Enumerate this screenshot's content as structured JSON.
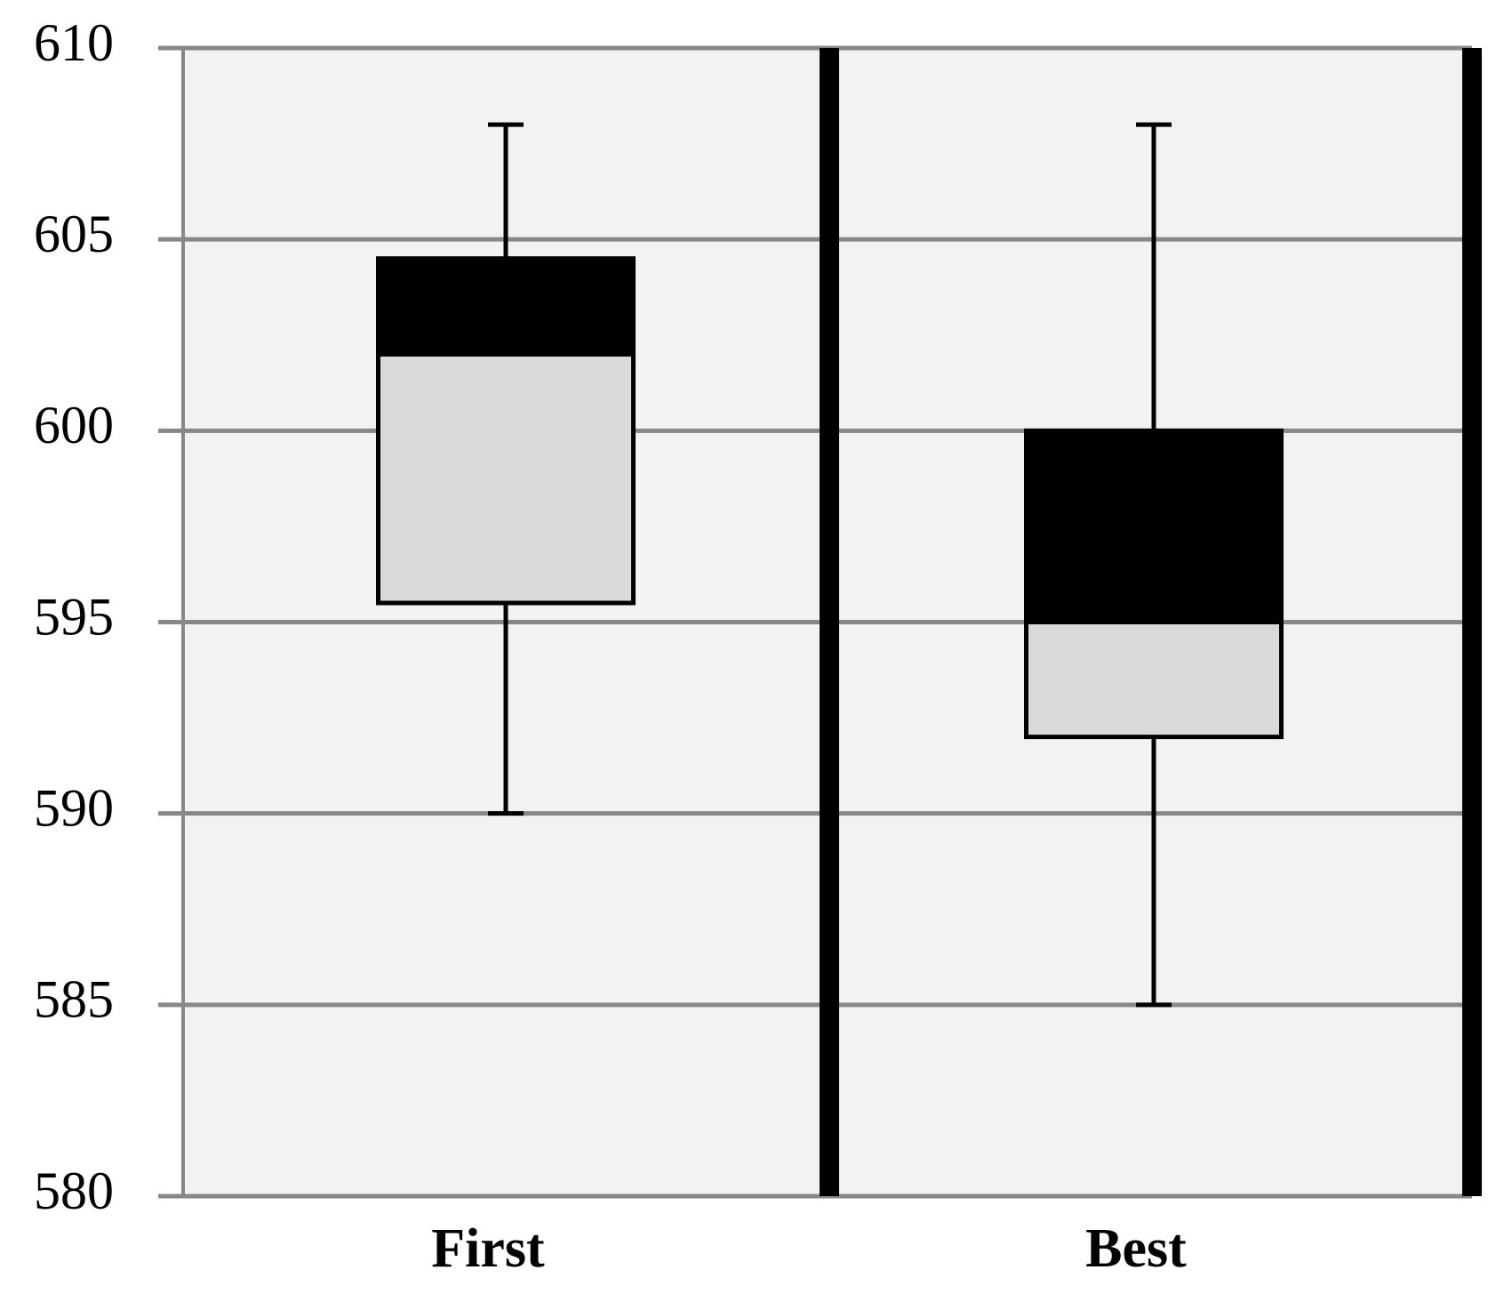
{
  "chart_data": {
    "type": "box",
    "categories": [
      "First",
      "Best"
    ],
    "min": [
      590,
      585
    ],
    "q1": [
      595.5,
      592
    ],
    "median": [
      602,
      595
    ],
    "q3": [
      604.5,
      600
    ],
    "max": [
      608,
      608
    ],
    "lower_color": "#d9d9d9",
    "upper_color": "#000000",
    "ylim": [
      580,
      610
    ],
    "yticks": [
      580,
      585,
      590,
      595,
      600,
      605,
      610
    ],
    "grid": true
  }
}
